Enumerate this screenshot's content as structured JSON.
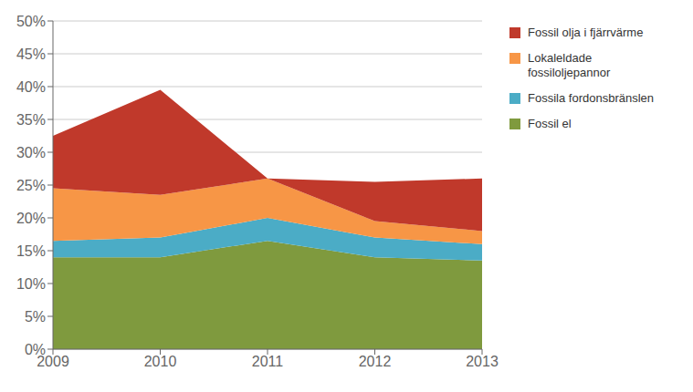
{
  "chart_data": {
    "type": "area",
    "stacked": true,
    "grid": true,
    "legend": "right",
    "x": [
      2009,
      2010,
      2011,
      2012,
      2013
    ],
    "xlim": [
      2009,
      2013
    ],
    "xticks": [
      2009,
      2010,
      2011,
      2012,
      2013
    ],
    "ylim": [
      0,
      0.5
    ],
    "yticks": [
      {
        "value": 0.0,
        "label": "0%"
      },
      {
        "value": 0.05,
        "label": "5%"
      },
      {
        "value": 0.1,
        "label": "10%"
      },
      {
        "value": 0.15,
        "label": "15%"
      },
      {
        "value": 0.2,
        "label": "20%"
      },
      {
        "value": 0.25,
        "label": "25%"
      },
      {
        "value": 0.3,
        "label": "30%"
      },
      {
        "value": 0.35,
        "label": "35%"
      },
      {
        "value": 0.4,
        "label": "40%"
      },
      {
        "value": 0.45,
        "label": "45%"
      },
      {
        "value": 0.5,
        "label": "50%"
      }
    ],
    "series": [
      {
        "name": "Fossil el",
        "color": "#7f9a3e",
        "values": [
          0.14,
          0.14,
          0.165,
          0.14,
          0.135
        ]
      },
      {
        "name": "Fossila fordonsbränslen",
        "color": "#4bacc6",
        "values": [
          0.025,
          0.03,
          0.035,
          0.03,
          0.025
        ]
      },
      {
        "name": "Lokaleldade\nfossiloljepannor",
        "color": "#f79646",
        "values": [
          0.08,
          0.065,
          0.06,
          0.025,
          0.02
        ]
      },
      {
        "name": "Fossil olja i fjärrvärme",
        "color": "#c0392b",
        "values": [
          0.08,
          0.16,
          0.0,
          0.06,
          0.08
        ]
      }
    ]
  }
}
